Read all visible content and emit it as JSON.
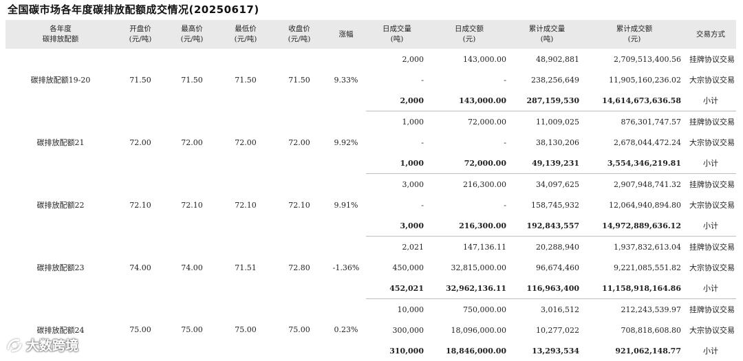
{
  "title": "全国碳市场各年度碳排放配额成交情况(20250617)",
  "headers": {
    "name": [
      "各年度",
      "碳排放配额"
    ],
    "open": [
      "开盘价",
      "(元/吨)"
    ],
    "high": [
      "最高价",
      "(元/吨)"
    ],
    "low": [
      "最低价",
      "(元/吨)"
    ],
    "close": [
      "收盘价",
      "(元/吨)"
    ],
    "change": [
      "涨幅"
    ],
    "day_vol": [
      "日成交量",
      "(吨)"
    ],
    "day_amt": [
      "日成交额",
      "(元)"
    ],
    "cum_vol": [
      "累计成交量",
      "(吨)"
    ],
    "cum_amt": [
      "累计成交额",
      "(元)"
    ],
    "method": [
      "交易方式"
    ]
  },
  "groups": [
    {
      "name": "碳排放配额19-20",
      "open": "71.50",
      "high": "71.50",
      "low": "71.50",
      "close": "71.50",
      "change": "9.33%",
      "rows": [
        {
          "day_vol": "2,000",
          "day_amt": "143,000.00",
          "cum_vol": "48,902,881",
          "cum_amt": "2,709,513,400.56",
          "method": "挂牌协议交易"
        },
        {
          "day_vol": "-",
          "day_amt": "-",
          "cum_vol": "238,256,649",
          "cum_amt": "11,905,160,236.02",
          "method": "大宗协议交易"
        },
        {
          "day_vol": "2,000",
          "day_amt": "143,000.00",
          "cum_vol": "287,159,530",
          "cum_amt": "14,614,673,636.58",
          "method": "小计"
        }
      ]
    },
    {
      "name": "碳排放配额21",
      "open": "72.00",
      "high": "72.00",
      "low": "72.00",
      "close": "72.00",
      "change": "9.92%",
      "rows": [
        {
          "day_vol": "1,000",
          "day_amt": "72,000.00",
          "cum_vol": "11,009,025",
          "cum_amt": "876,301,747.57",
          "method": "挂牌协议交易"
        },
        {
          "day_vol": "-",
          "day_amt": "-",
          "cum_vol": "38,130,206",
          "cum_amt": "2,678,044,472.24",
          "method": "大宗协议交易"
        },
        {
          "day_vol": "1,000",
          "day_amt": "72,000.00",
          "cum_vol": "49,139,231",
          "cum_amt": "3,554,346,219.81",
          "method": "小计"
        }
      ]
    },
    {
      "name": "碳排放配额22",
      "open": "72.10",
      "high": "72.10",
      "low": "72.10",
      "close": "72.10",
      "change": "9.91%",
      "rows": [
        {
          "day_vol": "3,000",
          "day_amt": "216,300.00",
          "cum_vol": "34,097,625",
          "cum_amt": "2,907,948,741.32",
          "method": "挂牌协议交易"
        },
        {
          "day_vol": "-",
          "day_amt": "-",
          "cum_vol": "158,745,932",
          "cum_amt": "12,064,940,894.80",
          "method": "大宗协议交易"
        },
        {
          "day_vol": "3,000",
          "day_amt": "216,300.00",
          "cum_vol": "192,843,557",
          "cum_amt": "14,972,889,636.12",
          "method": "小计"
        }
      ]
    },
    {
      "name": "碳排放配额23",
      "open": "74.00",
      "high": "74.00",
      "low": "71.51",
      "close": "72.80",
      "change": "-1.36%",
      "rows": [
        {
          "day_vol": "2,021",
          "day_amt": "147,136.11",
          "cum_vol": "20,288,940",
          "cum_amt": "1,937,832,613.04",
          "method": "挂牌协议交易"
        },
        {
          "day_vol": "450,000",
          "day_amt": "32,815,000.00",
          "cum_vol": "96,674,460",
          "cum_amt": "9,221,085,551.82",
          "method": "大宗协议交易"
        },
        {
          "day_vol": "452,021",
          "day_amt": "32,962,136.11",
          "cum_vol": "116,963,400",
          "cum_amt": "11,158,918,164.86",
          "method": "小计"
        }
      ]
    },
    {
      "name": "碳排放配额24",
      "open": "75.00",
      "high": "75.00",
      "low": "75.00",
      "close": "75.00",
      "change": "0.23%",
      "rows": [
        {
          "day_vol": "10,000",
          "day_amt": "750,000.00",
          "cum_vol": "3,016,512",
          "cum_amt": "212,243,539.97",
          "method": "挂牌协议交易"
        },
        {
          "day_vol": "300,000",
          "day_amt": "18,096,000.00",
          "cum_vol": "10,277,022",
          "cum_amt": "708,818,608.80",
          "method": "大宗协议交易"
        },
        {
          "day_vol": "310,000",
          "day_amt": "18,846,000.00",
          "cum_vol": "13,293,534",
          "cum_amt": "921,062,148.77",
          "method": "小计"
        }
      ]
    }
  ],
  "watermark": {
    "text": "大数跨境",
    "icon": "brand-logo-icon"
  }
}
